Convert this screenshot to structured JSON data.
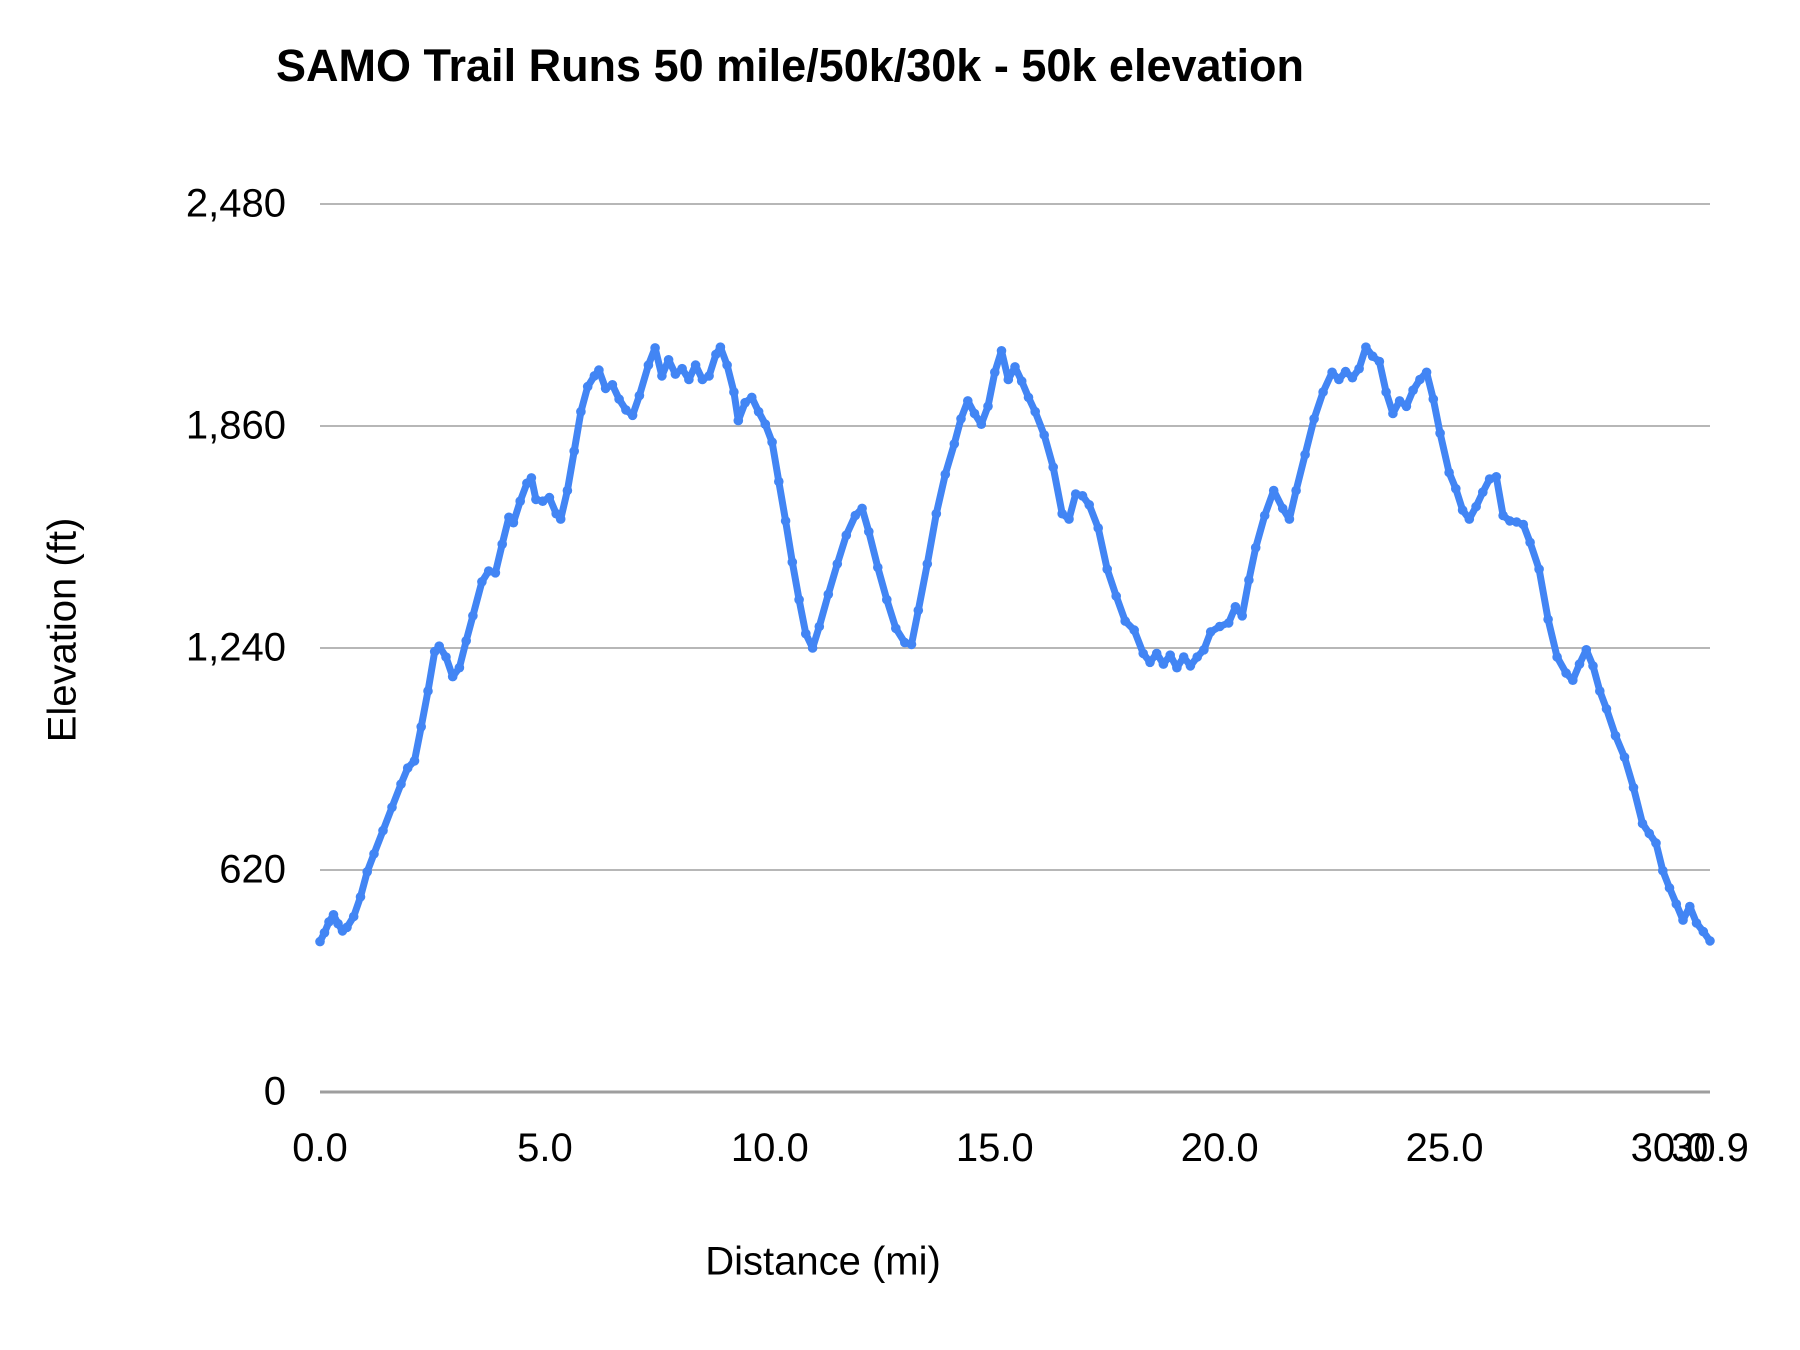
{
  "title": "SAMO Trail Runs 50 mile/50k/30k - 50k elevation",
  "chart_data": {
    "type": "line",
    "title": "SAMO Trail Runs 50 mile/50k/30k - 50k elevation",
    "xlabel": "Distance (mi)",
    "ylabel": "Elevation (ft)",
    "xlim": [
      0,
      30.9
    ],
    "ylim": [
      0,
      2480
    ],
    "grid": true,
    "legend": "none",
    "line_color": "#4285f4",
    "marker": "circle",
    "x_ticks": [
      {
        "value": 0,
        "label": "0.0"
      },
      {
        "value": 5,
        "label": "5.0"
      },
      {
        "value": 10,
        "label": "10.0"
      },
      {
        "value": 15,
        "label": "15.0"
      },
      {
        "value": 20,
        "label": "20.0"
      },
      {
        "value": 25,
        "label": "25.0"
      },
      {
        "value": 30,
        "label": "30.0"
      },
      {
        "value": 30.9,
        "label": "30.9"
      }
    ],
    "y_ticks": [
      {
        "value": 0,
        "label": "0"
      },
      {
        "value": 620,
        "label": "620"
      },
      {
        "value": 1240,
        "label": "1,240"
      },
      {
        "value": 1860,
        "label": "1,860"
      },
      {
        "value": 2480,
        "label": "2,480"
      }
    ],
    "series": [
      {
        "name": "50k elevation",
        "points": [
          [
            0,
            420
          ],
          [
            0.1,
            445
          ],
          [
            0.2,
            475
          ],
          [
            0.3,
            495
          ],
          [
            0.4,
            470
          ],
          [
            0.5,
            450
          ],
          [
            0.6,
            460
          ],
          [
            0.75,
            490
          ],
          [
            0.9,
            545
          ],
          [
            1.05,
            615
          ],
          [
            1.2,
            665
          ],
          [
            1.4,
            730
          ],
          [
            1.6,
            795
          ],
          [
            1.8,
            860
          ],
          [
            1.95,
            905
          ],
          [
            2.1,
            925
          ],
          [
            2.25,
            1020
          ],
          [
            2.4,
            1120
          ],
          [
            2.55,
            1230
          ],
          [
            2.65,
            1245
          ],
          [
            2.8,
            1215
          ],
          [
            2.95,
            1160
          ],
          [
            3.1,
            1185
          ],
          [
            3.25,
            1260
          ],
          [
            3.4,
            1330
          ],
          [
            3.6,
            1425
          ],
          [
            3.75,
            1455
          ],
          [
            3.9,
            1450
          ],
          [
            4.05,
            1530
          ],
          [
            4.2,
            1605
          ],
          [
            4.3,
            1590
          ],
          [
            4.45,
            1650
          ],
          [
            4.6,
            1700
          ],
          [
            4.7,
            1715
          ],
          [
            4.8,
            1655
          ],
          [
            4.95,
            1650
          ],
          [
            5.1,
            1660
          ],
          [
            5.25,
            1615
          ],
          [
            5.35,
            1600
          ],
          [
            5.5,
            1680
          ],
          [
            5.65,
            1790
          ],
          [
            5.8,
            1900
          ],
          [
            5.95,
            1970
          ],
          [
            6.1,
            2000
          ],
          [
            6.2,
            2016
          ],
          [
            6.35,
            1965
          ],
          [
            6.5,
            1975
          ],
          [
            6.65,
            1935
          ],
          [
            6.8,
            1905
          ],
          [
            6.95,
            1890
          ],
          [
            7.1,
            1945
          ],
          [
            7.3,
            2030
          ],
          [
            7.45,
            2078
          ],
          [
            7.6,
            2000
          ],
          [
            7.75,
            2045
          ],
          [
            7.9,
            2005
          ],
          [
            8.05,
            2020
          ],
          [
            8.2,
            1990
          ],
          [
            8.35,
            2030
          ],
          [
            8.5,
            1990
          ],
          [
            8.65,
            2000
          ],
          [
            8.8,
            2060
          ],
          [
            8.9,
            2080
          ],
          [
            9.05,
            2030
          ],
          [
            9.2,
            1955
          ],
          [
            9.3,
            1875
          ],
          [
            9.45,
            1925
          ],
          [
            9.6,
            1940
          ],
          [
            9.75,
            1900
          ],
          [
            9.9,
            1865
          ],
          [
            10.05,
            1815
          ],
          [
            10.2,
            1705
          ],
          [
            10.35,
            1595
          ],
          [
            10.5,
            1480
          ],
          [
            10.65,
            1375
          ],
          [
            10.8,
            1280
          ],
          [
            10.95,
            1240
          ],
          [
            11.1,
            1300
          ],
          [
            11.3,
            1390
          ],
          [
            11.5,
            1475
          ],
          [
            11.7,
            1555
          ],
          [
            11.9,
            1610
          ],
          [
            12.05,
            1630
          ],
          [
            12.2,
            1565
          ],
          [
            12.4,
            1465
          ],
          [
            12.6,
            1375
          ],
          [
            12.8,
            1295
          ],
          [
            13,
            1255
          ],
          [
            13.15,
            1250
          ],
          [
            13.3,
            1345
          ],
          [
            13.5,
            1475
          ],
          [
            13.7,
            1615
          ],
          [
            13.9,
            1725
          ],
          [
            14.1,
            1810
          ],
          [
            14.25,
            1880
          ],
          [
            14.4,
            1930
          ],
          [
            14.55,
            1895
          ],
          [
            14.7,
            1865
          ],
          [
            14.85,
            1915
          ],
          [
            15,
            2010
          ],
          [
            15.15,
            2070
          ],
          [
            15.3,
            1990
          ],
          [
            15.45,
            2025
          ],
          [
            15.6,
            1985
          ],
          [
            15.75,
            1940
          ],
          [
            15.9,
            1900
          ],
          [
            16.1,
            1835
          ],
          [
            16.3,
            1745
          ],
          [
            16.5,
            1615
          ],
          [
            16.65,
            1600
          ],
          [
            16.8,
            1670
          ],
          [
            16.95,
            1665
          ],
          [
            17.1,
            1640
          ],
          [
            17.3,
            1575
          ],
          [
            17.5,
            1460
          ],
          [
            17.7,
            1385
          ],
          [
            17.9,
            1315
          ],
          [
            18.1,
            1290
          ],
          [
            18.3,
            1225
          ],
          [
            18.45,
            1200
          ],
          [
            18.6,
            1225
          ],
          [
            18.75,
            1195
          ],
          [
            18.9,
            1220
          ],
          [
            19.05,
            1185
          ],
          [
            19.2,
            1215
          ],
          [
            19.35,
            1190
          ],
          [
            19.5,
            1215
          ],
          [
            19.65,
            1235
          ],
          [
            19.8,
            1285
          ],
          [
            20,
            1300
          ],
          [
            20.2,
            1310
          ],
          [
            20.35,
            1355
          ],
          [
            20.5,
            1330
          ],
          [
            20.65,
            1430
          ],
          [
            20.8,
            1520
          ],
          [
            21,
            1610
          ],
          [
            21.2,
            1680
          ],
          [
            21.4,
            1630
          ],
          [
            21.55,
            1600
          ],
          [
            21.7,
            1680
          ],
          [
            21.9,
            1780
          ],
          [
            22.1,
            1880
          ],
          [
            22.3,
            1955
          ],
          [
            22.5,
            2010
          ],
          [
            22.65,
            1990
          ],
          [
            22.8,
            2012
          ],
          [
            22.95,
            1995
          ],
          [
            23.1,
            2020
          ],
          [
            23.25,
            2080
          ],
          [
            23.4,
            2055
          ],
          [
            23.55,
            2040
          ],
          [
            23.7,
            1955
          ],
          [
            23.85,
            1895
          ],
          [
            24,
            1930
          ],
          [
            24.15,
            1915
          ],
          [
            24.3,
            1960
          ],
          [
            24.45,
            1990
          ],
          [
            24.6,
            2010
          ],
          [
            24.75,
            1935
          ],
          [
            24.9,
            1840
          ],
          [
            25.1,
            1730
          ],
          [
            25.25,
            1685
          ],
          [
            25.4,
            1625
          ],
          [
            25.55,
            1600
          ],
          [
            25.7,
            1635
          ],
          [
            25.85,
            1675
          ],
          [
            26,
            1712
          ],
          [
            26.15,
            1718
          ],
          [
            26.3,
            1610
          ],
          [
            26.45,
            1595
          ],
          [
            26.6,
            1592
          ],
          [
            26.75,
            1585
          ],
          [
            26.9,
            1535
          ],
          [
            27.1,
            1460
          ],
          [
            27.3,
            1320
          ],
          [
            27.5,
            1215
          ],
          [
            27.7,
            1170
          ],
          [
            27.85,
            1150
          ],
          [
            28,
            1195
          ],
          [
            28.15,
            1235
          ],
          [
            28.3,
            1190
          ],
          [
            28.45,
            1120
          ],
          [
            28.6,
            1070
          ],
          [
            28.8,
            995
          ],
          [
            29,
            935
          ],
          [
            29.2,
            850
          ],
          [
            29.4,
            750
          ],
          [
            29.55,
            722
          ],
          [
            29.7,
            695
          ],
          [
            29.85,
            618
          ],
          [
            30,
            570
          ],
          [
            30.15,
            525
          ],
          [
            30.3,
            480
          ],
          [
            30.45,
            518
          ],
          [
            30.6,
            472
          ],
          [
            30.75,
            448
          ],
          [
            30.9,
            422
          ]
        ]
      }
    ]
  }
}
